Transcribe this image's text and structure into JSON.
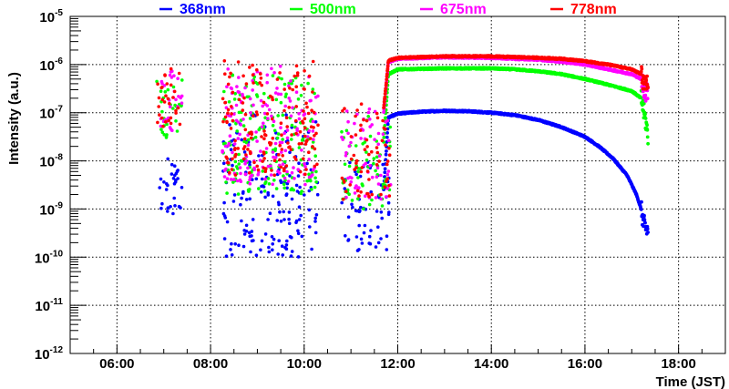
{
  "chart_data": {
    "type": "scatter",
    "title": "",
    "xlabel": "Time (JST)",
    "ylabel": "Intensity (a.u.)",
    "x_unit": "hours",
    "xlim": [
      5,
      19
    ],
    "ylim": [
      1e-12,
      1e-05
    ],
    "yscale": "log",
    "grid": true,
    "legend_placement": "top",
    "x_ticks": [
      {
        "v": 6,
        "label": "06:00"
      },
      {
        "v": 8,
        "label": "08:00"
      },
      {
        "v": 10,
        "label": "10:00"
      },
      {
        "v": 12,
        "label": "12:00"
      },
      {
        "v": 14,
        "label": "14:00"
      },
      {
        "v": 16,
        "label": "16:00"
      },
      {
        "v": 18,
        "label": "18:00"
      }
    ],
    "y_ticks": [
      {
        "exp": -5,
        "base": "10",
        "label": "-5"
      },
      {
        "exp": -6,
        "base": "10",
        "label": "-6"
      },
      {
        "exp": -7,
        "base": "10",
        "label": "-7"
      },
      {
        "exp": -8,
        "base": "10",
        "label": "-8"
      },
      {
        "exp": -9,
        "base": "10",
        "label": "-9"
      },
      {
        "exp": -10,
        "base": "10",
        "label": "-10"
      },
      {
        "exp": -11,
        "base": "10",
        "label": "-11"
      },
      {
        "exp": -12,
        "base": "10",
        "label": "-12"
      }
    ],
    "series": [
      {
        "name": "368nm",
        "color": "#0000ff",
        "curve_log10": [
          [
            11.7,
            -8.6
          ],
          [
            11.8,
            -7.1
          ],
          [
            12,
            -7.02
          ],
          [
            12.5,
            -6.98
          ],
          [
            13,
            -6.96
          ],
          [
            13.5,
            -6.97
          ],
          [
            14,
            -7.0
          ],
          [
            14.5,
            -7.05
          ],
          [
            15,
            -7.15
          ],
          [
            15.5,
            -7.3
          ],
          [
            16,
            -7.5
          ],
          [
            16.3,
            -7.7
          ],
          [
            16.6,
            -7.95
          ],
          [
            16.9,
            -8.3
          ],
          [
            17.1,
            -8.7
          ],
          [
            17.2,
            -9.0
          ],
          [
            17.25,
            -9.3
          ],
          [
            17.3,
            -9.4
          ],
          [
            17.35,
            -9.45
          ]
        ],
        "clusters_log10": [
          {
            "t": [
              6.85,
              7.4
            ],
            "range": [
              -7.9,
              -9.1
            ],
            "n": 30
          },
          {
            "t": [
              8.25,
              10.3
            ],
            "range": [
              -7.0,
              -10.0
            ],
            "n": 170
          },
          {
            "t": [
              10.8,
              11.85
            ],
            "range": [
              -8.0,
              -9.9
            ],
            "n": 60
          }
        ]
      },
      {
        "name": "500nm",
        "color": "#00ff00",
        "curve_log10": [
          [
            11.7,
            -7.6
          ],
          [
            11.8,
            -6.2
          ],
          [
            12,
            -6.1
          ],
          [
            13,
            -6.08
          ],
          [
            14,
            -6.08
          ],
          [
            14.5,
            -6.1
          ],
          [
            15,
            -6.14
          ],
          [
            15.5,
            -6.2
          ],
          [
            16,
            -6.3
          ],
          [
            16.5,
            -6.42
          ],
          [
            17,
            -6.55
          ],
          [
            17.2,
            -6.7
          ],
          [
            17.3,
            -7.2
          ],
          [
            17.35,
            -7.5
          ]
        ],
        "clusters_log10": [
          {
            "t": [
              6.85,
              7.4
            ],
            "range": [
              -6.3,
              -7.6
            ],
            "n": 30
          },
          {
            "t": [
              8.25,
              10.3
            ],
            "range": [
              -6.2,
              -8.7
            ],
            "n": 170
          },
          {
            "t": [
              10.8,
              11.85
            ],
            "range": [
              -7.0,
              -9.0
            ],
            "n": 60
          }
        ]
      },
      {
        "name": "675nm",
        "color": "#ff00ff",
        "curve_log10": [
          [
            11.7,
            -7.0
          ],
          [
            11.8,
            -5.95
          ],
          [
            12,
            -5.88
          ],
          [
            13,
            -5.85
          ],
          [
            14,
            -5.86
          ],
          [
            15,
            -5.9
          ],
          [
            15.5,
            -5.94
          ],
          [
            16,
            -6.0
          ],
          [
            16.5,
            -6.1
          ],
          [
            17,
            -6.2
          ],
          [
            17.2,
            -6.3
          ],
          [
            17.3,
            -6.6
          ],
          [
            17.35,
            -6.5
          ]
        ],
        "clusters_log10": [
          {
            "t": [
              6.85,
              7.4
            ],
            "range": [
              -6.1,
              -7.4
            ],
            "n": 30
          },
          {
            "t": [
              8.25,
              10.3
            ],
            "range": [
              -6.0,
              -8.5
            ],
            "n": 170
          },
          {
            "t": [
              10.8,
              11.85
            ],
            "range": [
              -6.8,
              -8.8
            ],
            "n": 60
          }
        ]
      },
      {
        "name": "778nm",
        "color": "#ff0000",
        "curve_log10": [
          [
            11.7,
            -6.9
          ],
          [
            11.8,
            -5.92
          ],
          [
            12,
            -5.86
          ],
          [
            13,
            -5.83
          ],
          [
            14,
            -5.83
          ],
          [
            15,
            -5.86
          ],
          [
            15.5,
            -5.88
          ],
          [
            16,
            -5.93
          ],
          [
            16.5,
            -6.0
          ],
          [
            17,
            -6.1
          ],
          [
            17.2,
            -6.2
          ],
          [
            17.3,
            -6.5
          ],
          [
            17.35,
            -6.3
          ]
        ],
        "clusters_log10": [
          {
            "t": [
              6.85,
              7.4
            ],
            "range": [
              -6.0,
              -7.3
            ],
            "n": 30
          },
          {
            "t": [
              8.25,
              10.3
            ],
            "range": [
              -5.9,
              -8.3
            ],
            "n": 170
          },
          {
            "t": [
              10.8,
              11.85
            ],
            "range": [
              -6.8,
              -8.8
            ],
            "n": 60
          }
        ]
      }
    ]
  }
}
